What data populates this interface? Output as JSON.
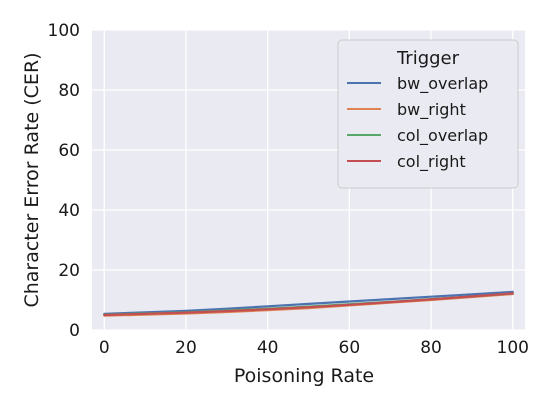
{
  "chart_data": {
    "type": "line",
    "xlabel": "Poisoning Rate",
    "ylabel": "Character Error Rate (CER)",
    "xlim": [
      -3,
      103
    ],
    "ylim": [
      0,
      100
    ],
    "x_ticks": [
      0,
      20,
      40,
      60,
      80,
      100
    ],
    "y_ticks": [
      0,
      20,
      40,
      60,
      80,
      100
    ],
    "grid": true,
    "legend": {
      "title": "Trigger",
      "placement": "top-right"
    },
    "x": [
      0,
      10,
      20,
      30,
      40,
      50,
      60,
      70,
      80,
      90,
      100
    ],
    "series": [
      {
        "name": "bw_overlap",
        "color": "#4c72b0",
        "values": [
          5.4,
          5.9,
          6.4,
          7.1,
          7.9,
          8.7,
          9.5,
          10.3,
          11.1,
          11.9,
          12.7
        ]
      },
      {
        "name": "bw_right",
        "color": "#dd8452",
        "values": [
          4.8,
          5.1,
          5.5,
          6.0,
          6.6,
          7.3,
          8.2,
          9.1,
          10.0,
          11.0,
          12.0
        ]
      },
      {
        "name": "col_overlap",
        "color": "#55a868",
        "values": [
          5.1,
          5.5,
          5.9,
          6.5,
          7.1,
          7.8,
          8.6,
          9.4,
          10.3,
          11.2,
          12.2
        ]
      },
      {
        "name": "col_right",
        "color": "#c44e52",
        "values": [
          5.0,
          5.4,
          5.8,
          6.3,
          6.9,
          7.6,
          8.4,
          9.3,
          10.2,
          11.2,
          12.2
        ]
      }
    ]
  }
}
